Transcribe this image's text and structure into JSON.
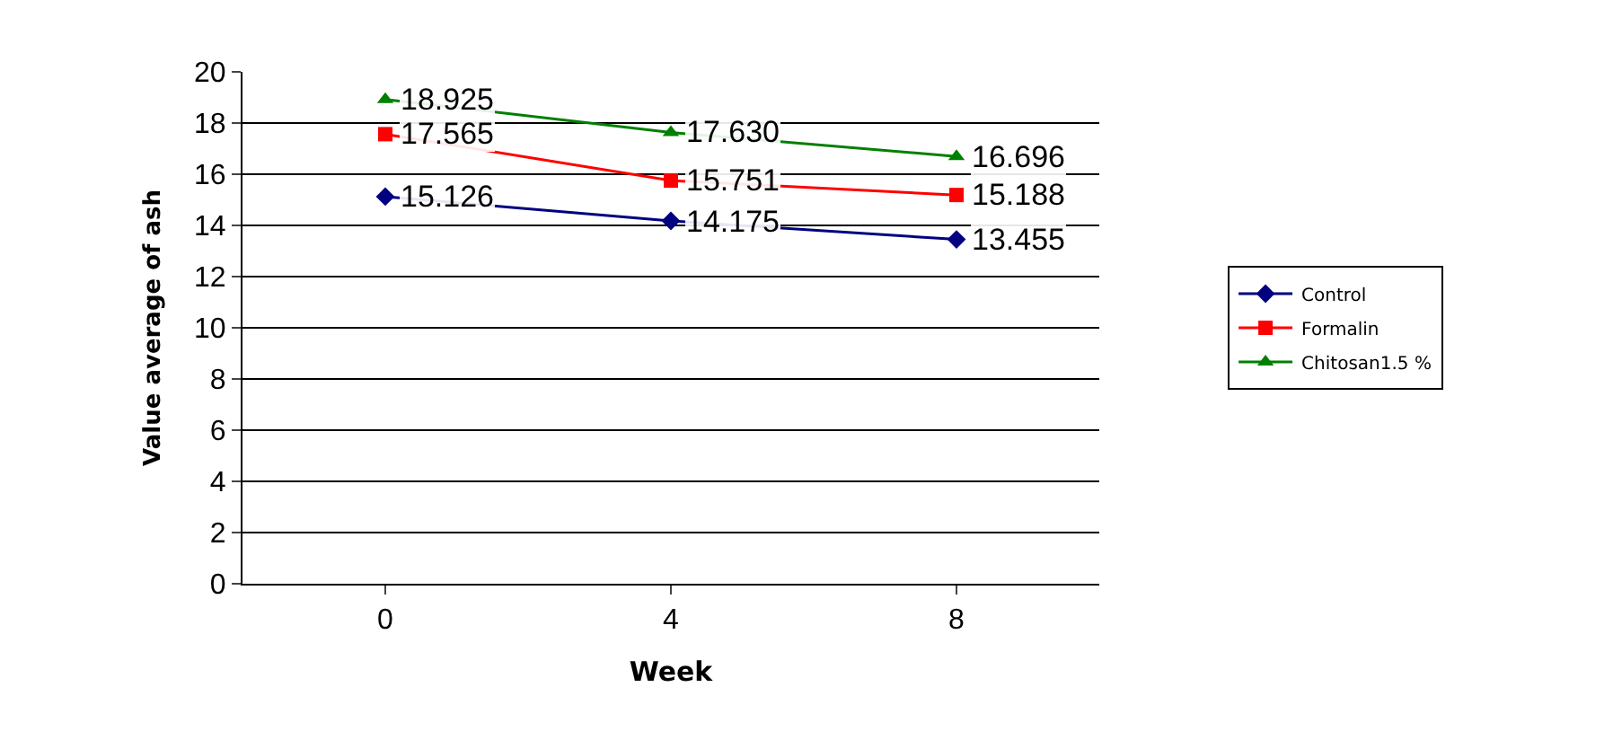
{
  "chart_data": {
    "type": "line",
    "xlabel": "Week",
    "ylabel": "Value average of ash",
    "categories": [
      "0",
      "4",
      "8"
    ],
    "series": [
      {
        "name": "Control",
        "color": "#000080",
        "marker": "diamond",
        "values": [
          15.126,
          14.175,
          13.455
        ],
        "value_labels": [
          "15.126",
          "14.175",
          "13.455"
        ]
      },
      {
        "name": "Formalin",
        "color": "#ff0000",
        "marker": "square",
        "values": [
          17.565,
          15.751,
          15.188
        ],
        "value_labels": [
          "17.565",
          "15.751",
          "15.188"
        ]
      },
      {
        "name": "Chitosan1.5 %",
        "color": "#008000",
        "marker": "triangle",
        "values": [
          18.925,
          17.63,
          16.696
        ],
        "value_labels": [
          "18.925",
          "17.630",
          "16.696"
        ]
      }
    ],
    "ylim": [
      0,
      20
    ],
    "yticks": [
      0,
      2,
      4,
      6,
      8,
      10,
      12,
      14,
      16,
      18,
      20
    ],
    "grid": "y",
    "legend": "right",
    "line_style": "solid"
  }
}
